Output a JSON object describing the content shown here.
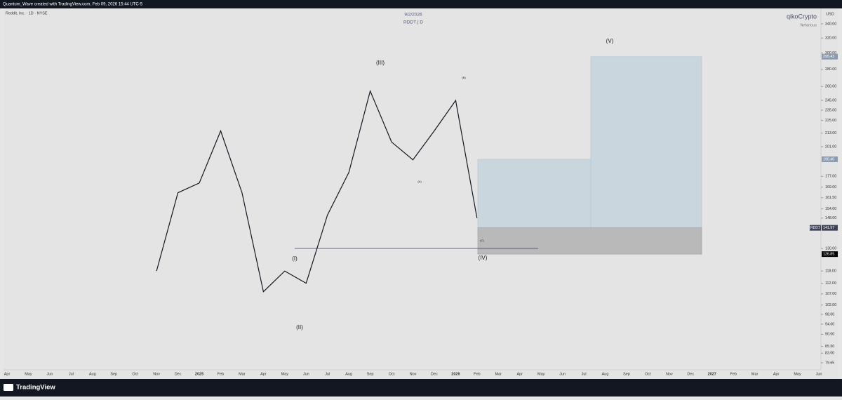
{
  "header": {
    "attribution": "Quantum_Wave created with TradingView.com, Feb 09, 2026 15:44 UTC-5"
  },
  "chart_data": {
    "type": "line",
    "symbol": "Reddit, Inc. · 1D · NYSE",
    "title": "9/2/2026",
    "subtitle": "RDDT | D",
    "watermark": "qikoCrypto",
    "watermark_sub": "Nefarious",
    "currency": "USD",
    "log_scale": true,
    "categories": [
      "Apr",
      "May",
      "Jun",
      "Jul",
      "Aug",
      "Sep",
      "Oct",
      "Nov",
      "Dec",
      "2025",
      "Feb",
      "Mar",
      "Apr",
      "May",
      "Jun",
      "Jul",
      "Aug",
      "Sep",
      "Oct",
      "Nov",
      "Dec",
      "2026",
      "Feb",
      "Mar",
      "Apr",
      "May",
      "Jun",
      "Jul",
      "Aug",
      "Sep",
      "Oct",
      "Nov",
      "Dec",
      "2027",
      "Feb",
      "Mar",
      "Apr",
      "May",
      "Jun"
    ],
    "series": [
      {
        "name": "RDDT",
        "color": "#131722",
        "values": [
          null,
          null,
          null,
          null,
          null,
          null,
          null,
          118,
          165,
          172,
          215,
          165,
          108,
          118,
          112,
          150,
          180,
          255,
          205,
          190,
          215,
          245,
          148,
          null,
          null,
          null,
          null,
          null,
          null,
          null,
          null,
          null,
          null,
          null,
          null,
          null,
          null,
          null,
          null
        ]
      }
    ],
    "ylim": [
      79.65,
      340
    ],
    "yticks": [
      {
        "value": 340,
        "label": "340.00"
      },
      {
        "value": 320,
        "label": "320.00"
      },
      {
        "value": 300,
        "label": "300.00"
      },
      {
        "value": 280,
        "label": "280.00"
      },
      {
        "value": 260,
        "label": "260.00"
      },
      {
        "value": 245,
        "label": "245.00"
      },
      {
        "value": 235,
        "label": "235.00"
      },
      {
        "value": 225,
        "label": "225.00"
      },
      {
        "value": 213,
        "label": "213.00"
      },
      {
        "value": 201,
        "label": "201.00"
      },
      {
        "value": 177,
        "label": "177.00"
      },
      {
        "value": 169,
        "label": "169.00"
      },
      {
        "value": 161.5,
        "label": "161.50"
      },
      {
        "value": 154,
        "label": "154.00"
      },
      {
        "value": 148,
        "label": "148.00"
      },
      {
        "value": 130,
        "label": "130.00"
      },
      {
        "value": 118,
        "label": "118.00"
      },
      {
        "value": 112,
        "label": "112.00"
      },
      {
        "value": 107,
        "label": "107.00"
      },
      {
        "value": 102,
        "label": "102.00"
      },
      {
        "value": 98,
        "label": "98.00"
      },
      {
        "value": 94,
        "label": "94.00"
      },
      {
        "value": 90,
        "label": "90.00"
      },
      {
        "value": 85.5,
        "label": "85.50"
      },
      {
        "value": 83,
        "label": "83.00"
      },
      {
        "value": 79.65,
        "label": "79.65"
      }
    ],
    "price_labels": [
      {
        "value": 295.43,
        "label": "295.43"
      },
      {
        "value": 190.4,
        "label": "190.40"
      },
      {
        "value": 126.85,
        "label": "126.85"
      }
    ],
    "current_price": {
      "value": 141.97,
      "label": "141.97"
    },
    "annotations": [
      "(I)",
      "(II)",
      "(III)",
      "(IV)",
      "(V)",
      "(A)",
      "(B)",
      "(C)"
    ],
    "grid": false
  },
  "footer": {
    "brand": "TradingView"
  }
}
